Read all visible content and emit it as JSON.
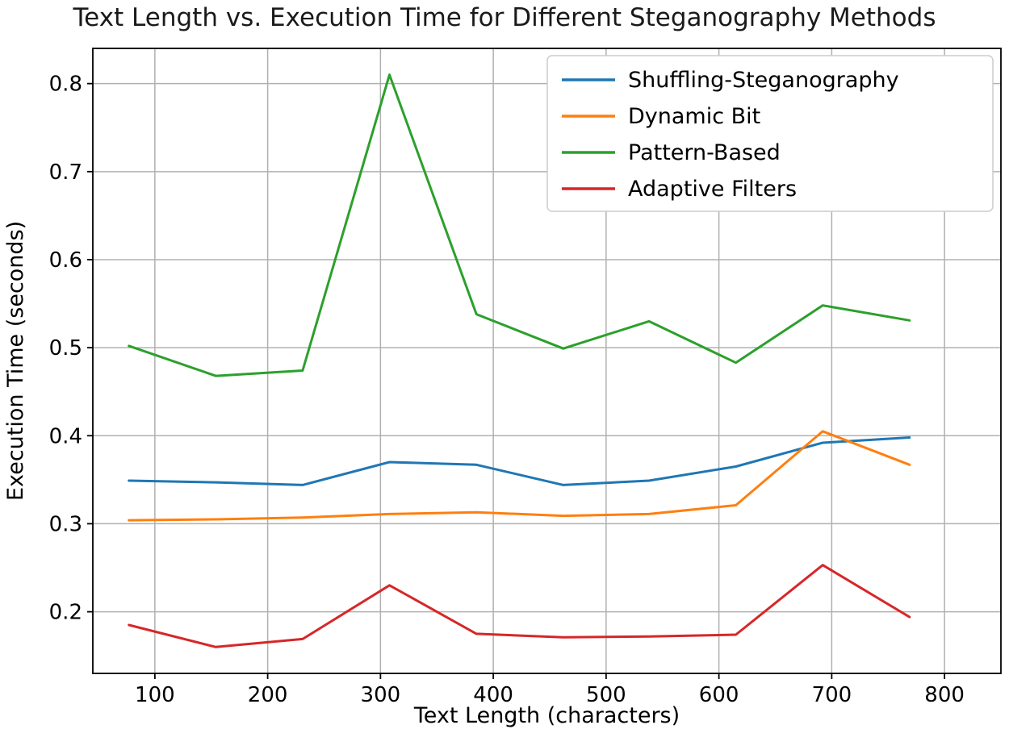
{
  "chart_data": {
    "type": "line",
    "title": "Text Length vs. Execution Time for Different Steganography Methods",
    "xlabel": "Text Length (characters)",
    "ylabel": "Execution Time (seconds)",
    "x": [
      77,
      154,
      231,
      308,
      385,
      462,
      538,
      615,
      692,
      769
    ],
    "series": [
      {
        "name": "Shuffling-Steganography",
        "color": "#1f77b4",
        "values": [
          0.349,
          0.347,
          0.344,
          0.37,
          0.367,
          0.344,
          0.349,
          0.365,
          0.392,
          0.398
        ]
      },
      {
        "name": "Dynamic Bit",
        "color": "#ff7f0e",
        "values": [
          0.304,
          0.305,
          0.307,
          0.311,
          0.313,
          0.309,
          0.311,
          0.321,
          0.405,
          0.367
        ]
      },
      {
        "name": "Pattern-Based",
        "color": "#2ca02c",
        "values": [
          0.502,
          0.468,
          0.474,
          0.81,
          0.538,
          0.499,
          0.53,
          0.483,
          0.548,
          0.531
        ]
      },
      {
        "name": "Adaptive Filters",
        "color": "#d62728",
        "values": [
          0.185,
          0.16,
          0.169,
          0.23,
          0.175,
          0.171,
          0.172,
          0.174,
          0.253,
          0.194
        ]
      }
    ],
    "xlim": [
      45,
      850
    ],
    "ylim": [
      0.13,
      0.84
    ],
    "xticks": [
      100,
      200,
      300,
      400,
      500,
      600,
      700,
      800
    ],
    "yticks": [
      0.2,
      0.3,
      0.4,
      0.5,
      0.6,
      0.7,
      0.8
    ],
    "grid": true,
    "legend": {
      "position": "upper right",
      "entries": [
        "Shuffling-Steganography",
        "Dynamic Bit",
        "Pattern-Based",
        "Adaptive Filters"
      ]
    },
    "colors": {
      "grid": "#b0b0b0",
      "axes": "#000000",
      "background": "#ffffff",
      "legend_border": "#cccccc"
    }
  }
}
